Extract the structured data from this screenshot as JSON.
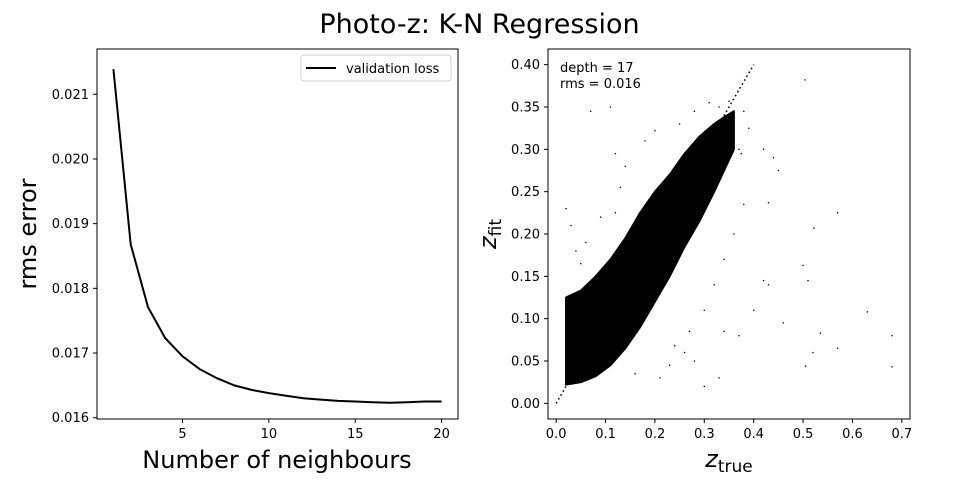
{
  "suptitle": "Photo-z: K-N Regression",
  "chart_data": [
    {
      "type": "line",
      "xlabel": "Number of neighbours",
      "ylabel": "rms error",
      "xlim": [
        0.05,
        20.95
      ],
      "ylim": [
        0.01598,
        0.0217
      ],
      "xticks": [
        5,
        10,
        15,
        20
      ],
      "yticks": [
        0.016,
        0.017,
        0.018,
        0.019,
        0.02,
        0.021
      ],
      "xtick_labels": [
        "5",
        "10",
        "15",
        "20"
      ],
      "ytick_labels": [
        "0.016",
        "0.017",
        "0.018",
        "0.019",
        "0.020",
        "0.021"
      ],
      "legend": {
        "position": "top-right",
        "entries": [
          "validation loss"
        ]
      },
      "grid": false,
      "series": [
        {
          "name": "validation loss",
          "color": "#000000",
          "x": [
            1,
            2,
            3,
            4,
            5,
            6,
            7,
            8,
            9,
            10,
            11,
            12,
            13,
            14,
            15,
            16,
            17,
            18,
            19,
            20
          ],
          "y": [
            0.02139,
            0.01868,
            0.01771,
            0.01723,
            0.01695,
            0.01675,
            0.01661,
            0.0165,
            0.01643,
            0.01638,
            0.01634,
            0.0163,
            0.01628,
            0.01626,
            0.01625,
            0.01624,
            0.01623,
            0.01624,
            0.01625,
            0.01625
          ]
        }
      ]
    },
    {
      "type": "scatter",
      "xlabel_main": "z",
      "xlabel_sub": "true",
      "ylabel_main": "z",
      "ylabel_sub": "fit",
      "xlim": [
        -0.0165,
        0.7165
      ],
      "ylim": [
        -0.0185,
        0.4185
      ],
      "xticks": [
        0.0,
        0.1,
        0.2,
        0.3,
        0.4,
        0.5,
        0.6,
        0.7
      ],
      "yticks": [
        0.0,
        0.05,
        0.1,
        0.15,
        0.2,
        0.25,
        0.3,
        0.35,
        0.4
      ],
      "xtick_labels": [
        "0.0",
        "0.1",
        "0.2",
        "0.3",
        "0.4",
        "0.5",
        "0.6",
        "0.7"
      ],
      "ytick_labels": [
        "0.00",
        "0.05",
        "0.10",
        "0.15",
        "0.20",
        "0.25",
        "0.30",
        "0.35",
        "0.40"
      ],
      "annotations": [
        "depth = 17",
        "rms = 0.016"
      ],
      "grid": false,
      "reference_line": {
        "style": "dotted",
        "x": [
          0.0,
          0.4
        ],
        "y": [
          0.0,
          0.4
        ]
      },
      "point_color": "#000000",
      "density_band": [
        {
          "x": 0.02,
          "y_lo": 0.022,
          "y_hi": 0.125
        },
        {
          "x": 0.05,
          "y_lo": 0.025,
          "y_hi": 0.133
        },
        {
          "x": 0.08,
          "y_lo": 0.032,
          "y_hi": 0.15
        },
        {
          "x": 0.11,
          "y_lo": 0.045,
          "y_hi": 0.17
        },
        {
          "x": 0.14,
          "y_lo": 0.065,
          "y_hi": 0.195
        },
        {
          "x": 0.17,
          "y_lo": 0.09,
          "y_hi": 0.225
        },
        {
          "x": 0.2,
          "y_lo": 0.12,
          "y_hi": 0.25
        },
        {
          "x": 0.23,
          "y_lo": 0.15,
          "y_hi": 0.27
        },
        {
          "x": 0.26,
          "y_lo": 0.185,
          "y_hi": 0.295
        },
        {
          "x": 0.29,
          "y_lo": 0.215,
          "y_hi": 0.315
        },
        {
          "x": 0.32,
          "y_lo": 0.25,
          "y_hi": 0.33
        },
        {
          "x": 0.34,
          "y_lo": 0.275,
          "y_hi": 0.338
        },
        {
          "x": 0.36,
          "y_lo": 0.3,
          "y_hi": 0.345
        }
      ],
      "outliers": [
        [
          0.504,
          0.382
        ],
        [
          0.522,
          0.207
        ],
        [
          0.57,
          0.225
        ],
        [
          0.5,
          0.163
        ],
        [
          0.51,
          0.145
        ],
        [
          0.63,
          0.108
        ],
        [
          0.68,
          0.08
        ],
        [
          0.535,
          0.083
        ],
        [
          0.57,
          0.065
        ],
        [
          0.52,
          0.06
        ],
        [
          0.68,
          0.043
        ],
        [
          0.505,
          0.044
        ],
        [
          0.46,
          0.095
        ],
        [
          0.43,
          0.14
        ],
        [
          0.42,
          0.145
        ],
        [
          0.44,
          0.29
        ],
        [
          0.45,
          0.275
        ],
        [
          0.43,
          0.237
        ],
        [
          0.375,
          0.295
        ],
        [
          0.36,
          0.31
        ],
        [
          0.38,
          0.345
        ],
        [
          0.37,
          0.3
        ],
        [
          0.33,
          0.03
        ],
        [
          0.37,
          0.08
        ],
        [
          0.4,
          0.11
        ],
        [
          0.34,
          0.085
        ],
        [
          0.28,
          0.05
        ],
        [
          0.3,
          0.02
        ],
        [
          0.26,
          0.06
        ],
        [
          0.23,
          0.045
        ],
        [
          0.07,
          0.345
        ],
        [
          0.11,
          0.35
        ],
        [
          0.12,
          0.295
        ],
        [
          0.14,
          0.28
        ],
        [
          0.13,
          0.255
        ],
        [
          0.18,
          0.31
        ],
        [
          0.2,
          0.322
        ],
        [
          0.02,
          0.23
        ],
        [
          0.03,
          0.21
        ],
        [
          0.06,
          0.19
        ],
        [
          0.09,
          0.22
        ],
        [
          0.12,
          0.225
        ],
        [
          0.25,
          0.33
        ],
        [
          0.28,
          0.345
        ],
        [
          0.31,
          0.355
        ],
        [
          0.33,
          0.35
        ],
        [
          0.35,
          0.357
        ],
        [
          0.39,
          0.325
        ],
        [
          0.42,
          0.3
        ],
        [
          0.16,
          0.035
        ],
        [
          0.21,
          0.03
        ],
        [
          0.24,
          0.068
        ],
        [
          0.27,
          0.085
        ],
        [
          0.3,
          0.11
        ],
        [
          0.32,
          0.14
        ],
        [
          0.34,
          0.17
        ],
        [
          0.36,
          0.2
        ],
        [
          0.38,
          0.235
        ],
        [
          0.05,
          0.165
        ],
        [
          0.04,
          0.18
        ]
      ]
    }
  ]
}
